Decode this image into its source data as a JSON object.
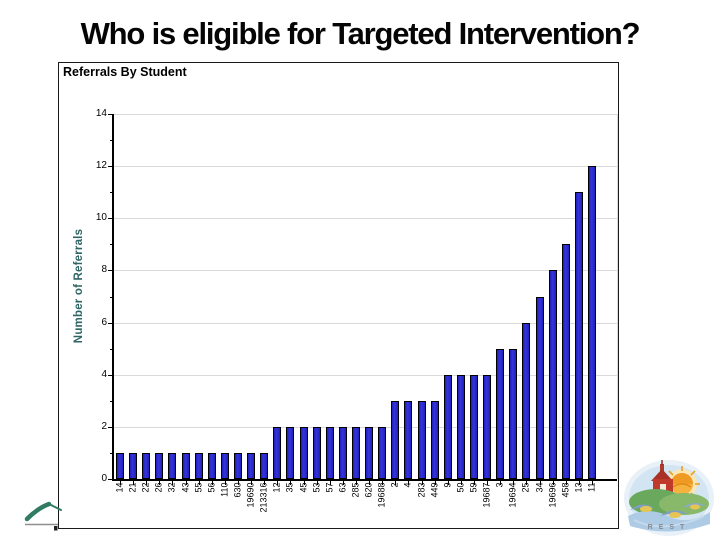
{
  "slide": {
    "title": "Who is eligible for Targeted Intervention?"
  },
  "chart_data": {
    "type": "bar",
    "title": "Referrals By Student",
    "xlabel": "",
    "ylabel": "Number of Referrals",
    "categories": [
      "14",
      "21",
      "22",
      "26",
      "32",
      "43",
      "55",
      "56",
      "110",
      "630",
      "19690",
      "213316",
      "12",
      "35",
      "45",
      "53",
      "57",
      "63",
      "285",
      "620",
      "19688",
      "2",
      "4",
      "283",
      "449",
      "9",
      "50",
      "59",
      "19687",
      "3",
      "19694",
      "25",
      "34",
      "19696",
      "458",
      "13",
      "11"
    ],
    "values": [
      1,
      1,
      1,
      1,
      1,
      1,
      1,
      1,
      1,
      1,
      1,
      1,
      2,
      2,
      2,
      2,
      2,
      2,
      2,
      2,
      2,
      3,
      3,
      3,
      3,
      4,
      4,
      4,
      4,
      5,
      5,
      6,
      7,
      8,
      9,
      11,
      12
    ],
    "ylim": [
      0,
      14
    ],
    "yticks": [
      0,
      2,
      4,
      6,
      8,
      10,
      12,
      14
    ],
    "grid": "horizontal",
    "legend": "none"
  },
  "colors": {
    "bar_fill": "#2020bf",
    "bar_border": "#000000",
    "gridline": "#d9d9d9",
    "axis": "#000000",
    "ylabel_text": "#2e6565",
    "title_text": "#050505"
  },
  "logos": {
    "bottom_left": "partial-teal-swoosh",
    "bottom_right": "school-crest",
    "crest_letters": "REST"
  }
}
